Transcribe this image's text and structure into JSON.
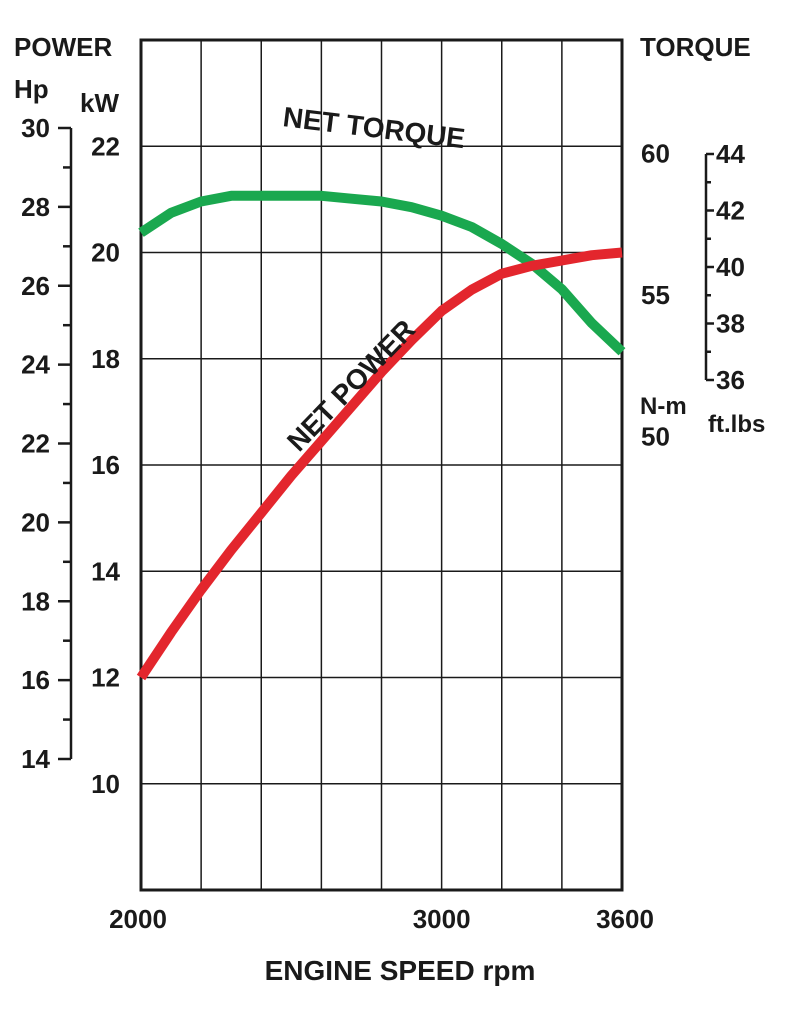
{
  "chart_data": {
    "type": "line",
    "xlabel": "ENGINE SPEED rpm",
    "x_ticks": [
      "2000",
      "3000",
      "3600"
    ],
    "xlim": [
      2000,
      3600
    ],
    "left_axis_title": "POWER",
    "kw_axis": {
      "unit": "kW",
      "range": [
        8,
        24
      ],
      "ticks": [
        "10",
        "12",
        "14",
        "16",
        "18",
        "20",
        "22"
      ]
    },
    "hp_axis": {
      "unit": "Hp",
      "range": [
        14,
        30
      ],
      "ticks": [
        "14",
        "16",
        "18",
        "20",
        "22",
        "24",
        "26",
        "28",
        "30"
      ]
    },
    "right_axis_title": "TORQUE",
    "nm_axis": {
      "unit": "N-m",
      "range": [
        34,
        64
      ],
      "ticks": [
        "50",
        "55",
        "60"
      ]
    },
    "ftlbs_axis": {
      "unit": "ft.lbs",
      "range": [
        36,
        44
      ],
      "ticks": [
        "36",
        "38",
        "40",
        "42",
        "44"
      ]
    },
    "grid": true,
    "series": [
      {
        "name": "NET TORQUE",
        "axis": "N-m",
        "color": "#1aa84f",
        "x": [
          2000,
          2100,
          2200,
          2300,
          2400,
          2500,
          2600,
          2700,
          2800,
          2900,
          3000,
          3100,
          3200,
          3300,
          3400,
          3500,
          3600
        ],
        "y": [
          57.2,
          57.9,
          58.3,
          58.5,
          58.5,
          58.5,
          58.5,
          58.4,
          58.3,
          58.1,
          57.8,
          57.4,
          56.8,
          56.1,
          55.2,
          54.0,
          53.0
        ]
      },
      {
        "name": "NET POWER",
        "axis": "kW",
        "color": "#e3262d",
        "x": [
          2000,
          2100,
          2200,
          2300,
          2400,
          2500,
          2600,
          2700,
          2800,
          2900,
          3000,
          3100,
          3200,
          3300,
          3400,
          3500,
          3600
        ],
        "y": [
          12.0,
          12.85,
          13.65,
          14.4,
          15.1,
          15.8,
          16.45,
          17.1,
          17.75,
          18.35,
          18.9,
          19.3,
          19.6,
          19.75,
          19.85,
          19.95,
          20.0
        ]
      }
    ]
  }
}
